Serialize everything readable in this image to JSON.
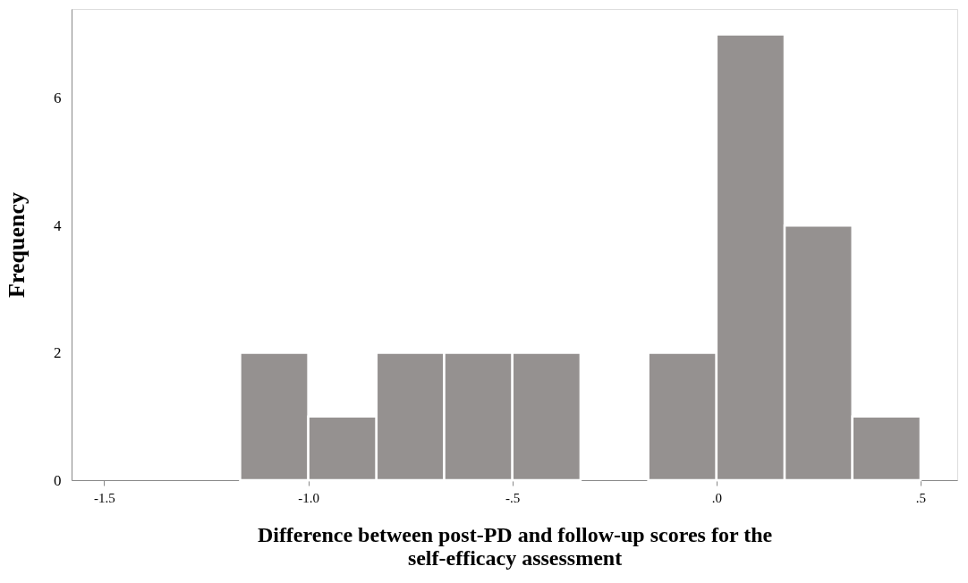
{
  "chart_data": {
    "type": "histogram",
    "xlabel": "Difference between post-PD and follow-up scores for the\nself-efficacy assessment",
    "ylabel": "Frequency",
    "bins": [
      -1.167,
      -1.0,
      -0.833,
      -0.667,
      -0.5,
      -0.333,
      -0.167,
      0,
      0.167,
      0.333,
      0.5
    ],
    "values": [
      2,
      1,
      2,
      2,
      2,
      0,
      2,
      7,
      4,
      1
    ],
    "color": "#959190",
    "xlim": [
      -1.58,
      0.59
    ],
    "ylim": [
      0,
      7.4
    ],
    "xticks": [
      {
        "value": -1.5,
        "label": "-1.5"
      },
      {
        "value": -1.0,
        "label": "-1.0"
      },
      {
        "value": -0.5,
        "label": "-.5"
      },
      {
        "value": 0,
        "label": ".0"
      },
      {
        "value": 0.5,
        "label": ".5"
      }
    ],
    "yticks": [
      0,
      2,
      4,
      6
    ],
    "grid": false
  }
}
